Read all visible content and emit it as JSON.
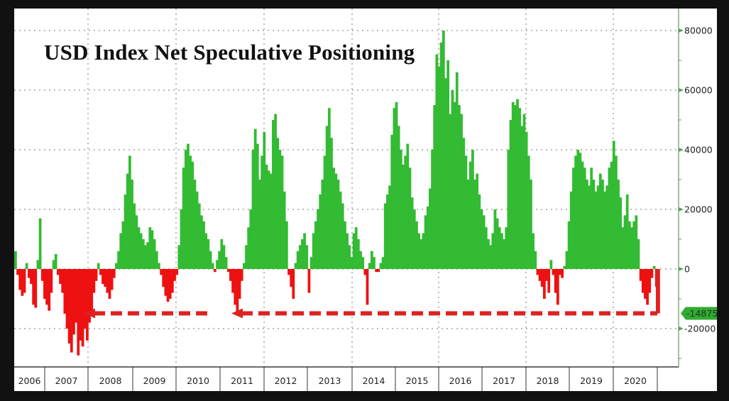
{
  "title": "USD Index Net Speculative Positioning",
  "chart_data": {
    "type": "area",
    "title": "USD Index Net Speculative Positioning",
    "xlabel": "",
    "ylabel": "",
    "ylim": [
      -32000,
      84000
    ],
    "y_ticks": [
      80000,
      60000,
      40000,
      20000,
      0,
      -20000
    ],
    "y_tick_labels": [
      "80000",
      "60000",
      "40000",
      "20000",
      "0",
      "-20000"
    ],
    "x_tick_labels": [
      "2006",
      "2007",
      "2008",
      "2009",
      "2010",
      "2011",
      "2012",
      "2013",
      "2014",
      "2015",
      "2016",
      "2017",
      "2018",
      "2019",
      "2020"
    ],
    "grid": true,
    "legend": "none",
    "positive_color": "#33bb33",
    "negative_color": "#ee1111",
    "last_value": -14875,
    "last_value_label": "-14875",
    "annotation": "Dashed red arrows at -14875 pointing left to 2007/2008 and 2011 lows",
    "series": [
      {
        "name": "USD Index Net Speculative Positioning (weekly, approx)",
        "x_start": "2006-01",
        "points_per_year": 26,
        "values": [
          6000,
          -2000,
          -7000,
          -9000,
          -8000,
          2000,
          -3000,
          -5000,
          -12000,
          -13000,
          3000,
          17000,
          -4000,
          -10000,
          -12000,
          -14000,
          -8000,
          3000,
          5000,
          -2000,
          -5000,
          -8000,
          -15000,
          -20000,
          -25000,
          -28000,
          -22000,
          -18000,
          -29000,
          -24000,
          -26000,
          -20000,
          -24000,
          -18000,
          -14000,
          -8000,
          -4000,
          2000,
          -2000,
          -5000,
          -6000,
          -8000,
          -10000,
          -7000,
          -3000,
          2000,
          6000,
          12000,
          16000,
          25000,
          32000,
          38000,
          30000,
          22000,
          18000,
          14000,
          12000,
          10000,
          8000,
          9000,
          14000,
          13000,
          10000,
          6000,
          2000,
          -2000,
          -6000,
          -9000,
          -11000,
          -10000,
          -8000,
          -4000,
          -2000,
          8000,
          20000,
          34000,
          40000,
          42000,
          38000,
          36000,
          30000,
          26000,
          22000,
          18000,
          16000,
          12000,
          10000,
          6000,
          2000,
          -1000,
          3000,
          6000,
          10000,
          8000,
          4000,
          -1000,
          -4000,
          -8000,
          -12000,
          -15000,
          -10000,
          -4000,
          2000,
          8000,
          14000,
          20000,
          40000,
          47000,
          42000,
          30000,
          38000,
          46000,
          35000,
          33000,
          32000,
          50000,
          52000,
          44000,
          40000,
          38000,
          26000,
          16000,
          -2000,
          -6000,
          -10000,
          2000,
          6000,
          8000,
          10000,
          12000,
          8000,
          -8000,
          4000,
          12000,
          16000,
          20000,
          25000,
          30000,
          38000,
          48000,
          54000,
          44000,
          34000,
          32000,
          30000,
          26000,
          22000,
          16000,
          12000,
          8000,
          4000,
          12000,
          14000,
          10000,
          6000,
          4000,
          -2000,
          -12000,
          2000,
          6000,
          4000,
          -1000,
          -1000,
          2000,
          4000,
          22000,
          25000,
          28000,
          45000,
          54000,
          56000,
          48000,
          40000,
          35000,
          38000,
          42000,
          34000,
          24000,
          20000,
          16000,
          12000,
          10000,
          12000,
          18000,
          21000,
          27000,
          40000,
          55000,
          72000,
          68000,
          76000,
          80000,
          64000,
          70000,
          52000,
          60000,
          56000,
          66000,
          55000,
          52000,
          44000,
          38000,
          30000,
          36000,
          40000,
          30000,
          32000,
          25000,
          20000,
          18000,
          14000,
          10000,
          8000,
          12000,
          20000,
          17000,
          14000,
          12000,
          10000,
          14000,
          40000,
          50000,
          56000,
          55000,
          57000,
          54000,
          48000,
          52000,
          46000,
          38000,
          30000,
          12000,
          6000,
          -2000,
          -4000,
          -6000,
          -10000,
          -4000,
          -8000,
          3000,
          -2000,
          -8000,
          -12000,
          -2000,
          -3000,
          1000,
          6000,
          16000,
          26000,
          34000,
          38000,
          40000,
          39000,
          36000,
          34000,
          30000,
          28000,
          34000,
          30000,
          26000,
          28000,
          32000,
          30000,
          26000,
          28000,
          34000,
          36000,
          43000,
          38000,
          30000,
          24000,
          14000,
          18000,
          25000,
          16000,
          14000,
          16000,
          18000,
          10000,
          -4000,
          -8000,
          -10000,
          -12000,
          -8000,
          -3000,
          1000,
          -6000,
          -14875
        ]
      }
    ]
  },
  "axis": {
    "y_labels": [
      "80000",
      "60000",
      "40000",
      "20000",
      "0",
      "-20000"
    ],
    "x_labels": [
      "2006",
      "2007",
      "2008",
      "2009",
      "2010",
      "2011",
      "2012",
      "2013",
      "2014",
      "2015",
      "2016",
      "2017",
      "2018",
      "2019",
      "2020"
    ],
    "last_value_badge": "-14875"
  },
  "colors": {
    "positive": "#33bb33",
    "negative": "#ee1111",
    "annotation": "#dd2222",
    "axis": "#5aa05a",
    "badge": "#33aa33"
  }
}
